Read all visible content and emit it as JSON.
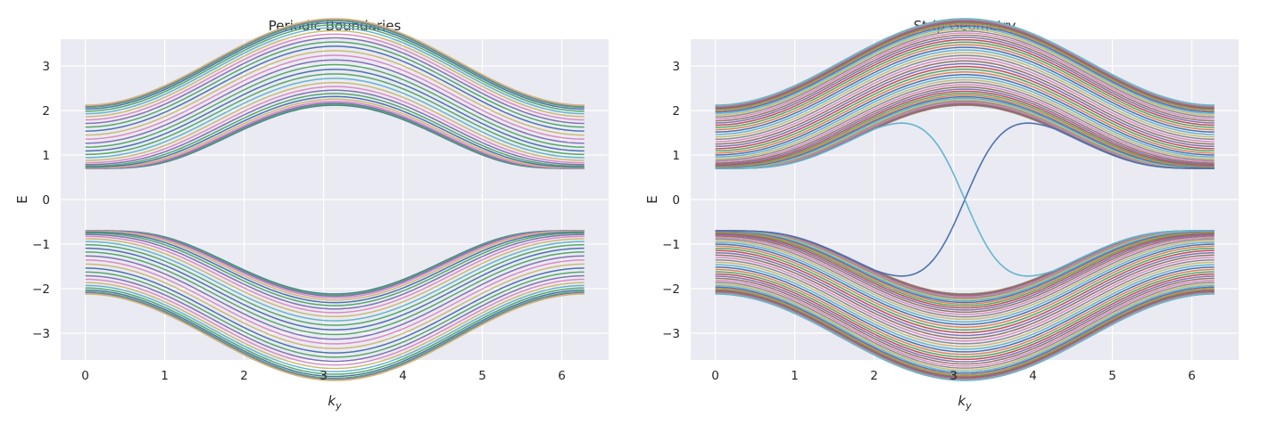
{
  "chart_data": [
    {
      "type": "line",
      "title": "Periodic Boundaries",
      "xlabel_base": "k",
      "xlabel_sub": "y",
      "ylabel": "E",
      "xlim": [
        -0.31,
        6.59
      ],
      "ylim": [
        -3.6,
        3.6
      ],
      "xticks": [
        0,
        1,
        2,
        3,
        4,
        5,
        6
      ],
      "xtick_labels": [
        "0",
        "1",
        "2",
        "3",
        "4",
        "5",
        "6"
      ],
      "yticks": [
        -3,
        -2,
        -1,
        0,
        1,
        2,
        3
      ],
      "ytick_labels": [
        "−3",
        "−2",
        "−1",
        "0",
        "1",
        "2",
        "3"
      ],
      "model": {
        "description": "two bands E = ±sqrt(m^2 + (2 - cos ky - cos kx)^2), one line per sampled kx",
        "m": 0.7,
        "kx_samples": 30,
        "ky_range": [
          0,
          6.2832
        ],
        "points_per_line": 120,
        "edge_state": false
      }
    },
    {
      "type": "line",
      "title": "Strip Geometry",
      "xlabel_base": "k",
      "xlabel_sub": "y",
      "ylabel": "E",
      "xlim": [
        -0.31,
        6.59
      ],
      "ylim": [
        -3.6,
        3.6
      ],
      "xticks": [
        0,
        1,
        2,
        3,
        4,
        5,
        6
      ],
      "xtick_labels": [
        "0",
        "1",
        "2",
        "3",
        "4",
        "5",
        "6"
      ],
      "yticks": [
        -3,
        -2,
        -1,
        0,
        1,
        2,
        3
      ],
      "ytick_labels": [
        "−3",
        "−2",
        "−1",
        "0",
        "1",
        "2",
        "3"
      ],
      "model": {
        "description": "strip bulk bands plus two edge states crossing E = 0 at ky = pi",
        "m": 0.7,
        "kx_samples": 50,
        "ky_range": [
          0,
          6.2832
        ],
        "points_per_line": 120,
        "edge_state": true,
        "edge_crossing_ky": 3.1416,
        "edge_merge_ky": [
          2.0,
          4.28
        ]
      }
    }
  ],
  "palette": [
    "#4c72b0",
    "#dd8452",
    "#55a868",
    "#c44e52",
    "#8172b3",
    "#937860",
    "#da8bc3",
    "#8c8c8c",
    "#ccb974",
    "#64b5cd"
  ],
  "periodic_palette": [
    "#55a868",
    "#4c72b0",
    "#55a868",
    "#8172b3",
    "#da8bc3",
    "#ccb974",
    "#4c72b0",
    "#55a868",
    "#8172b3",
    "#da8bc3",
    "#ccb974",
    "#64b5cd"
  ],
  "edge_colors": [
    "#4c72b0",
    "#64b5cd"
  ],
  "colors": {
    "axes_bg": "#eaeaf2",
    "grid": "#ffffff",
    "text": "#262626"
  }
}
